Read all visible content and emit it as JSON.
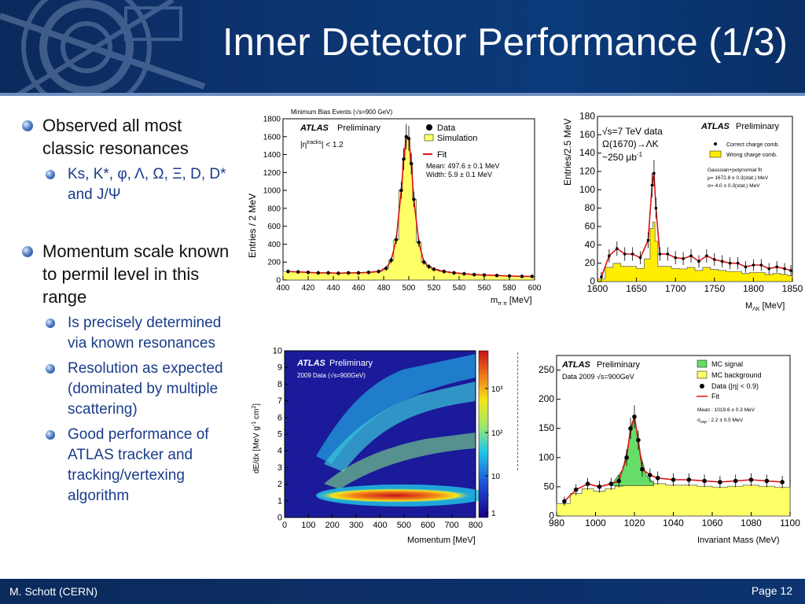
{
  "slide": {
    "title": "Inner Detector Performance (1/3)",
    "footer_left": "M. Schott (CERN)",
    "footer_right": "Page 12"
  },
  "bullets": [
    {
      "text": "Observed all most classic resonances",
      "sub": [
        {
          "text": "Ks, K*, φ, Λ, Ω, Ξ, D, D* and J/Ψ"
        }
      ]
    },
    {
      "text": "Momentum scale known to permil level in this range",
      "sub": [
        {
          "text": "Is precisely determined via known resonances"
        },
        {
          "text": "Resolution as expected (dominated by multiple scattering)"
        },
        {
          "text": "Good performance of ATLAS tracker and tracking/vertexing algorithm"
        }
      ]
    }
  ],
  "plots": {
    "kshort": {
      "top_caption": "Minimum Bias Events (√s=900 GeV)",
      "atlas": "ATLAS",
      "prelim": "Preliminary",
      "cut": "|η",
      "cut_sup": "tracks",
      "cut_tail": "| < 1.2",
      "legend_data": "Data",
      "legend_sim": "Simulation",
      "legend_fit": "Fit",
      "mean": "Mean: 497.6 ± 0.1 MeV",
      "width": "Width:   5.9 ± 0.1 MeV",
      "ylabel": "Entries / 2 MeV",
      "xlabel": "m",
      "xlabel_sub": "π π",
      "xlabel_unit": " [MeV]"
    },
    "omega": {
      "atlas": "ATLAS",
      "prelim": "Preliminary",
      "line1": "√s=7 TeV data",
      "line2": "Ω(1670)→ΛK",
      "line3": "~250 μb",
      "line3_sup": "-1",
      "leg_correct": "Correct charge comb.",
      "leg_wrong": "Wrong charge comb.",
      "fit1": "Gaussian+polynomial fit",
      "fit2": "μ= 1672.8 ± 0.3(stat.) MeV",
      "fit3": "σ=     4.0 ± 0.3(stat.) MeV",
      "ylabel": "Entries/2.5 MeV",
      "xlabel": "M",
      "xlabel_sub": "ΛK",
      "xlabel_unit": " [MeV]"
    },
    "dedx": {
      "atlas": "ATLAS",
      "prelim": "Preliminary",
      "data": "2009 Data (√s=900GeV)",
      "ylabel": "dE/dx [MeV g",
      "ylabel_sup1": "-1",
      "ylabel_mid": " cm",
      "ylabel_sup2": "2",
      "ylabel_end": "]",
      "xlabel": "Momentum [MeV]"
    },
    "phi": {
      "atlas": "ATLAS",
      "prelim": "Preliminary",
      "data": "Data 2009 √s=900GeV",
      "leg_signal": "MC signal",
      "leg_bkg": "MC background",
      "leg_data": "Data (|η| < 0.9)",
      "leg_fit": "Fit",
      "mean": "Mean : 1019.6 ±  0.3 MeV",
      "sigma": "σ",
      "sigma_sub": "exp",
      "sigma_tail": " :  2.2 ±  0.5 MeV",
      "xlabel": "Invariant Mass (MeV)"
    }
  },
  "chart_data": [
    {
      "type": "histogram",
      "id": "kshort",
      "xlim": [
        400,
        600
      ],
      "ylim": [
        0,
        1800
      ],
      "xticks": [
        400,
        420,
        440,
        460,
        480,
        500,
        520,
        540,
        560,
        580,
        600
      ],
      "yticks": [
        0,
        200,
        400,
        600,
        800,
        1000,
        1200,
        1400,
        1600,
        1800
      ],
      "series": [
        {
          "name": "Data",
          "x": [
            404,
            412,
            420,
            428,
            436,
            444,
            452,
            460,
            468,
            476,
            482,
            486,
            490,
            494,
            496,
            498,
            500,
            502,
            504,
            508,
            512,
            516,
            520,
            528,
            536,
            544,
            552,
            560,
            570,
            580,
            590,
            598
          ],
          "y": [
            95,
            90,
            85,
            80,
            80,
            75,
            80,
            80,
            85,
            95,
            130,
            220,
            450,
            1000,
            1350,
            1600,
            1580,
            1300,
            900,
            420,
            200,
            150,
            120,
            95,
            80,
            70,
            60,
            55,
            50,
            45,
            40,
            40
          ]
        },
        {
          "name": "Simulation"
        },
        {
          "name": "Fit"
        }
      ]
    },
    {
      "type": "histogram",
      "id": "omega",
      "xlim": [
        1600,
        1850
      ],
      "ylim": [
        0,
        180
      ],
      "xticks": [
        1600,
        1650,
        1700,
        1750,
        1800,
        1850
      ],
      "yticks": [
        0,
        20,
        40,
        60,
        80,
        100,
        120,
        140,
        160,
        180
      ],
      "series": [
        {
          "name": "Correct charge comb.",
          "x": [
            1605,
            1615,
            1625,
            1635,
            1645,
            1655,
            1665,
            1670,
            1672.5,
            1675,
            1680,
            1690,
            1700,
            1710,
            1720,
            1730,
            1740,
            1750,
            1760,
            1770,
            1780,
            1790,
            1800,
            1810,
            1820,
            1830,
            1840,
            1848
          ],
          "y": [
            5,
            28,
            36,
            30,
            30,
            26,
            45,
            105,
            118,
            80,
            30,
            30,
            26,
            25,
            28,
            22,
            28,
            24,
            22,
            20,
            20,
            16,
            18,
            18,
            14,
            16,
            14,
            12
          ]
        },
        {
          "name": "Wrong charge comb."
        }
      ]
    },
    {
      "type": "heatmap",
      "id": "dedx",
      "xlim": [
        0,
        800
      ],
      "ylim": [
        0,
        10
      ],
      "xticks": [
        0,
        100,
        200,
        300,
        400,
        500,
        600,
        700,
        800
      ],
      "yticks": [
        0,
        1,
        2,
        3,
        4,
        5,
        6,
        7,
        8,
        9,
        10
      ],
      "zscale": "log",
      "zticks": [
        "1",
        "10",
        "10²",
        "10³"
      ]
    },
    {
      "type": "histogram",
      "id": "phi",
      "xlim": [
        980,
        1100
      ],
      "ylim": [
        0,
        275
      ],
      "xticks": [
        980,
        1000,
        1020,
        1040,
        1060,
        1080,
        1100
      ],
      "yticks": [
        0,
        50,
        100,
        150,
        200,
        250
      ],
      "series": [
        {
          "name": "Data (|η| < 0.9)",
          "x": [
            984,
            990,
            996,
            1002,
            1008,
            1012,
            1016,
            1018,
            1020,
            1022,
            1024,
            1028,
            1032,
            1040,
            1048,
            1056,
            1064,
            1072,
            1080,
            1088,
            1096
          ],
          "y": [
            25,
            45,
            55,
            50,
            55,
            60,
            100,
            150,
            170,
            130,
            80,
            70,
            65,
            62,
            62,
            60,
            58,
            60,
            62,
            60,
            58
          ]
        },
        {
          "name": "MC signal"
        },
        {
          "name": "MC background"
        },
        {
          "name": "Fit"
        }
      ]
    }
  ]
}
